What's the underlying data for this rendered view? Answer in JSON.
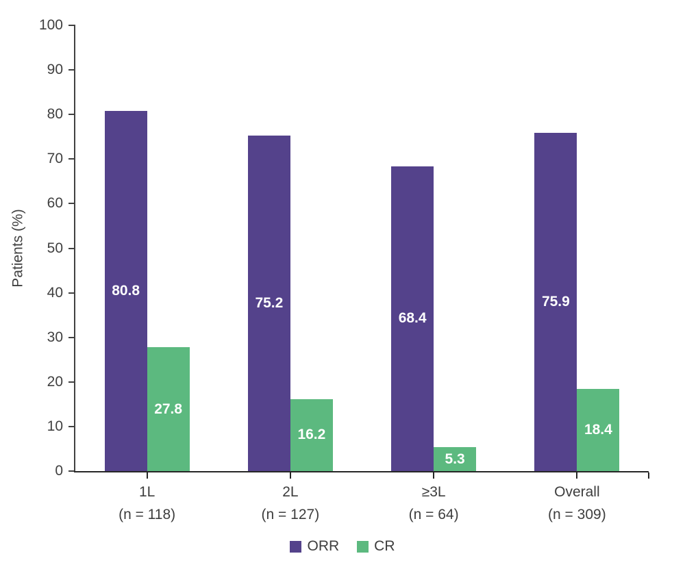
{
  "chart_data": {
    "type": "bar",
    "title": "",
    "ylabel": "Patients (%)",
    "xlabel": "",
    "ylim": [
      0,
      100
    ],
    "y_ticks": [
      0,
      10,
      20,
      30,
      40,
      50,
      60,
      70,
      80,
      90,
      100
    ],
    "grid": false,
    "legend_position": "bottom-center",
    "categories": [
      {
        "label": "1L",
        "sublabel": "(n = 118)"
      },
      {
        "label": "2L",
        "sublabel": "(n = 127)"
      },
      {
        "label": "≥3L",
        "sublabel": "(n = 64)"
      },
      {
        "label": "Overall",
        "sublabel": "(n = 309)"
      }
    ],
    "series": [
      {
        "name": "ORR",
        "color": "#54428B",
        "values": [
          80.8,
          75.2,
          68.4,
          75.9
        ]
      },
      {
        "name": "CR",
        "color": "#5CB97F",
        "values": [
          27.8,
          16.2,
          5.3,
          18.4
        ]
      }
    ],
    "value_label_color": "#ffffff",
    "axis_color": "#404040",
    "x_axis_color": "#262626",
    "text_color": "#3d3d3d"
  }
}
